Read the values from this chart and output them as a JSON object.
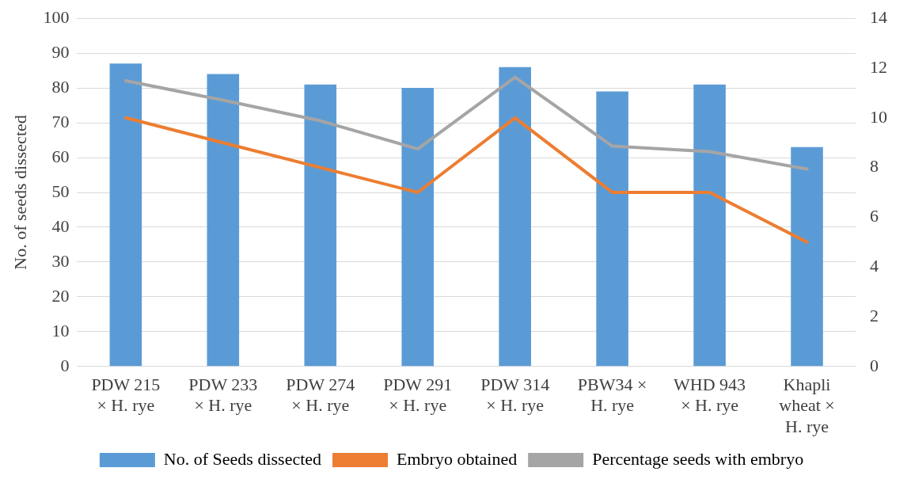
{
  "chart_data": {
    "type": "bar",
    "ylabel": "No. of seeds dissected",
    "categories": [
      "PDW 215 × H. rye",
      "PDW 233 × H. rye",
      "PDW 274 × H. rye",
      "PDW 291 × H. rye",
      "PDW 314 × H. rye",
      "PBW34 × H. rye",
      "WHD 943 × H. rye",
      "Khapli wheat × H. rye"
    ],
    "series": [
      {
        "name": "No. of Seeds dissected",
        "color": "#5b9bd5",
        "values": [
          87,
          84,
          81,
          80,
          86,
          79,
          81,
          63
        ]
      },
      {
        "name": "Embryo obtained",
        "type": "line",
        "axis": "y2",
        "color": "#ed7d31",
        "values": [
          10,
          9,
          8,
          7,
          10,
          7,
          7,
          5
        ]
      },
      {
        "name": "Percentage seeds with embryo",
        "type": "line",
        "axis": "y2",
        "color": "#a5a5a5",
        "values": [
          11.49,
          10.71,
          9.88,
          8.75,
          11.63,
          8.86,
          8.64,
          7.94
        ]
      }
    ],
    "ylim": [
      0,
      100
    ],
    "yticks": [
      0,
      10,
      20,
      30,
      40,
      50,
      60,
      70,
      80,
      90,
      100
    ],
    "y2lim": [
      0,
      14
    ],
    "y2ticks": [
      0,
      2,
      4,
      6,
      8,
      10,
      12,
      14
    ],
    "grid": "y",
    "legend": "bottom",
    "marker": "none",
    "line_style": "solid"
  }
}
